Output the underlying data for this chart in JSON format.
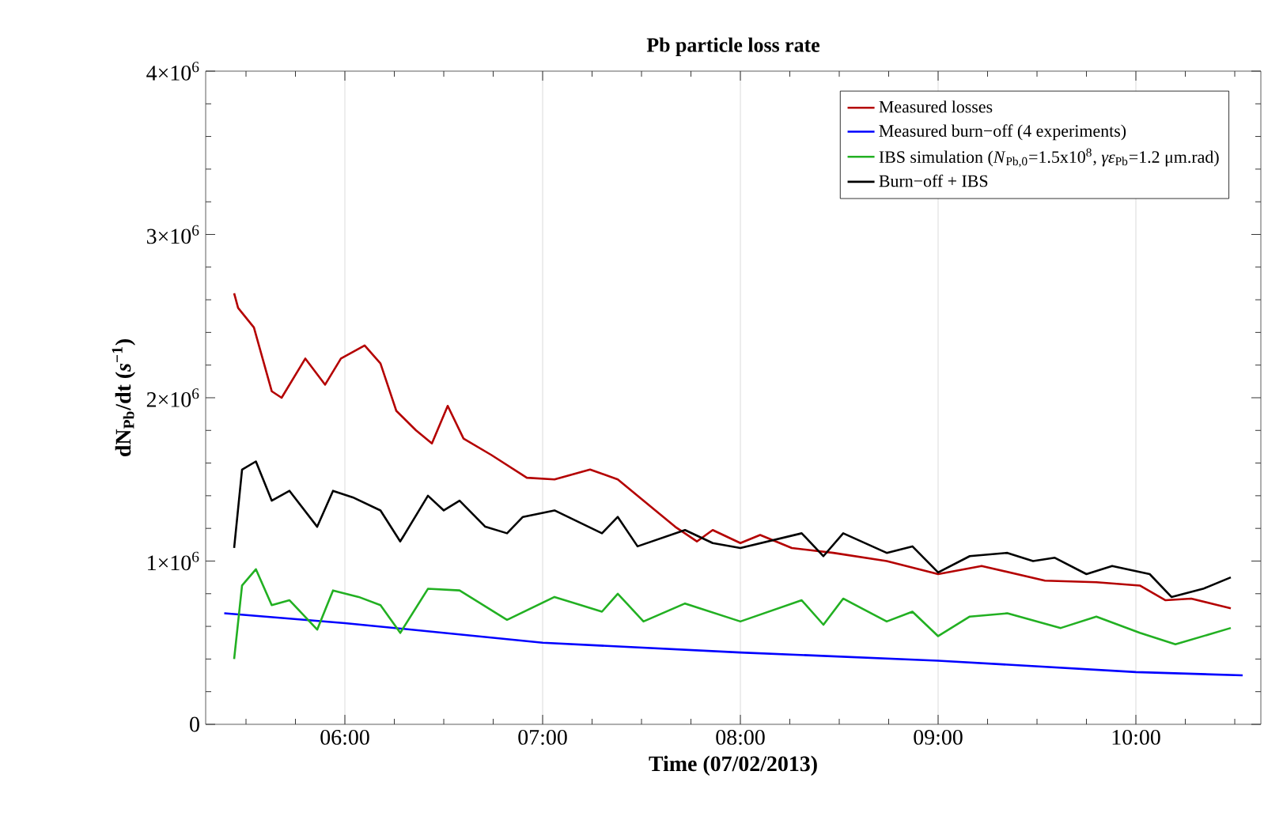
{
  "chart_data": {
    "type": "line",
    "title": "Pb particle loss rate",
    "xlabel": "Time (07/02/2013)",
    "ylabel": "dN$_{Pb}$/dt (*s*$^{−1}$)",
    "xlim": [
      5.296,
      10.632
    ],
    "ylim": [
      0,
      4000000
    ],
    "xticks": [
      {
        "value": 5.5,
        "label": null
      },
      {
        "value": 5.75,
        "label": null
      },
      {
        "value": 6,
        "label": "06:00"
      },
      {
        "value": 6.25,
        "label": null
      },
      {
        "value": 6.5,
        "label": null
      },
      {
        "value": 6.75,
        "label": null
      },
      {
        "value": 7,
        "label": "07:00"
      },
      {
        "value": 7.25,
        "label": null
      },
      {
        "value": 7.5,
        "label": null
      },
      {
        "value": 7.75,
        "label": null
      },
      {
        "value": 8,
        "label": "08:00"
      },
      {
        "value": 8.25,
        "label": null
      },
      {
        "value": 8.5,
        "label": null
      },
      {
        "value": 8.75,
        "label": null
      },
      {
        "value": 9,
        "label": "09:00"
      },
      {
        "value": 9.25,
        "label": null
      },
      {
        "value": 9.5,
        "label": null
      },
      {
        "value": 9.75,
        "label": null
      },
      {
        "value": 10,
        "label": "10:00"
      },
      {
        "value": 10.25,
        "label": null
      },
      {
        "value": 10.5,
        "label": null
      }
    ],
    "yticks": [
      0,
      {
        "value": 200000,
        "label": null
      },
      {
        "value": 400000,
        "label": null
      },
      {
        "value": 600000,
        "label": null
      },
      {
        "value": 800000,
        "label": null
      },
      {
        "value": 1000000,
        "label": "1×10$^{6}$"
      },
      {
        "value": 1200000,
        "label": null
      },
      {
        "value": 1400000,
        "label": null
      },
      {
        "value": 1600000,
        "label": null
      },
      {
        "value": 1800000,
        "label": null
      },
      {
        "value": 2000000,
        "label": "2×10$^{6}$"
      },
      {
        "value": 2200000,
        "label": null
      },
      {
        "value": 2400000,
        "label": null
      },
      {
        "value": 2600000,
        "label": null
      },
      {
        "value": 2800000,
        "label": null
      },
      {
        "value": 3000000,
        "label": "3×10$^{6}$"
      },
      {
        "value": 3200000,
        "label": null
      },
      {
        "value": 3400000,
        "label": null
      },
      {
        "value": 3600000,
        "label": null
      },
      {
        "value": 3800000,
        "label": null
      },
      {
        "value": 4000000,
        "label": "4×10$^{6}$"
      }
    ],
    "grid": "x",
    "legend": "top right",
    "marker": "none",
    "line_style": "solid",
    "series": [
      {
        "name": "Measured losses",
        "color": "#b40000",
        "x": [
          5.44,
          5.46,
          5.54,
          5.63,
          5.68,
          5.8,
          5.9,
          5.98,
          6.1,
          6.18,
          6.26,
          6.36,
          6.44,
          6.52,
          6.6,
          6.74,
          6.92,
          7.06,
          7.24,
          7.38,
          7.54,
          7.67,
          7.78,
          7.86,
          8.0,
          8.1,
          8.26,
          8.47,
          8.74,
          9.0,
          9.22,
          9.54,
          9.8,
          10.02,
          10.15,
          10.28,
          10.48
        ],
        "values": [
          2640000,
          2550000,
          2430000,
          2040000,
          2000000,
          2240000,
          2080000,
          2240000,
          2320000,
          2210000,
          1920000,
          1800000,
          1720000,
          1950000,
          1750000,
          1650000,
          1510000,
          1500000,
          1560000,
          1500000,
          1340000,
          1210000,
          1120000,
          1190000,
          1110000,
          1160000,
          1080000,
          1050000,
          1000000,
          920000,
          970000,
          880000,
          870000,
          850000,
          760000,
          770000,
          710000
        ]
      },
      {
        "name": "Measured burn−off (4 experiments)",
        "color": "#0000ff",
        "x": [
          5.39,
          6.0,
          7.0,
          8.0,
          9.0,
          10.0,
          10.54
        ],
        "values": [
          680000,
          620000,
          500000,
          440000,
          390000,
          320000,
          300000
        ]
      },
      {
        "name": "IBS simulation (*N*$_{Pb,0}$=1.5x10$^{8}$, *γε*$_{Pb}$=1.2 μm.rad)",
        "color": "#22b022",
        "x": [
          5.44,
          5.48,
          5.55,
          5.63,
          5.72,
          5.86,
          5.94,
          6.07,
          6.18,
          6.28,
          6.42,
          6.58,
          6.82,
          7.06,
          7.3,
          7.38,
          7.51,
          7.72,
          8.0,
          8.31,
          8.42,
          8.52,
          8.74,
          8.87,
          9.0,
          9.16,
          9.35,
          9.62,
          9.8,
          10.02,
          10.2,
          10.48
        ],
        "values": [
          400000,
          850000,
          950000,
          730000,
          760000,
          580000,
          820000,
          780000,
          730000,
          560000,
          830000,
          820000,
          640000,
          780000,
          690000,
          800000,
          630000,
          740000,
          630000,
          760000,
          610000,
          770000,
          630000,
          690000,
          540000,
          660000,
          680000,
          590000,
          660000,
          560000,
          490000,
          590000
        ]
      },
      {
        "name": "Burn−off + IBS",
        "color": "#000000",
        "x": [
          5.44,
          5.48,
          5.55,
          5.63,
          5.72,
          5.86,
          5.94,
          6.04,
          6.18,
          6.28,
          6.42,
          6.5,
          6.58,
          6.71,
          6.82,
          6.9,
          7.06,
          7.3,
          7.38,
          7.48,
          7.72,
          7.86,
          8.0,
          8.31,
          8.42,
          8.52,
          8.74,
          8.87,
          9.0,
          9.16,
          9.35,
          9.48,
          9.59,
          9.75,
          9.88,
          10.07,
          10.18,
          10.34,
          10.48
        ],
        "values": [
          1080000,
          1560000,
          1610000,
          1370000,
          1430000,
          1210000,
          1430000,
          1390000,
          1310000,
          1120000,
          1400000,
          1310000,
          1370000,
          1210000,
          1170000,
          1270000,
          1310000,
          1170000,
          1270000,
          1090000,
          1190000,
          1110000,
          1080000,
          1170000,
          1030000,
          1170000,
          1050000,
          1090000,
          930000,
          1030000,
          1050000,
          1000000,
          1020000,
          920000,
          970000,
          920000,
          780000,
          830000,
          900000
        ]
      }
    ]
  }
}
